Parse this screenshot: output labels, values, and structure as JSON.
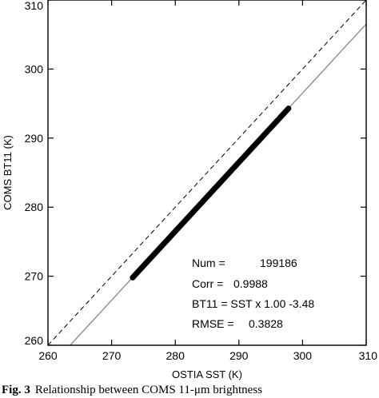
{
  "chart_data": {
    "type": "scatter",
    "xlabel": "OSTIA SST (K)",
    "ylabel": "COMS BT11 (K)",
    "xlim": [
      260,
      310
    ],
    "ylim": [
      260,
      310
    ],
    "xticks": [
      "260",
      "270",
      "280",
      "290",
      "300",
      "310"
    ],
    "yticks": [
      "260",
      "270",
      "280",
      "290",
      "300",
      "310"
    ],
    "grid": false,
    "legend": "none",
    "series": [
      {
        "style": "thick-black-band",
        "x": [
          273.3,
          297.8
        ],
        "y": [
          269.8,
          294.3
        ]
      }
    ],
    "reference_lines": [
      {
        "style": "dashed",
        "color": "#000000",
        "slope": 1.0,
        "intercept": 0.0
      },
      {
        "style": "solid",
        "color": "#888888",
        "slope": 1.0,
        "intercept": -3.48
      }
    ],
    "annotations": [
      {
        "label": "Num =",
        "value": "199186"
      },
      {
        "label": "Corr =",
        "value": "0.9988"
      },
      {
        "label": "BT11 = SST x 1.00 -3.48",
        "value": ""
      },
      {
        "label": "RMSE =",
        "value": "0.3828"
      }
    ],
    "colors": {
      "points": "#000000",
      "fit_line": "#888888",
      "one_to_one": "#000000"
    }
  },
  "caption": {
    "label": "Fig. 3",
    "text": "Relationship between COMS 11-μm brightness"
  }
}
